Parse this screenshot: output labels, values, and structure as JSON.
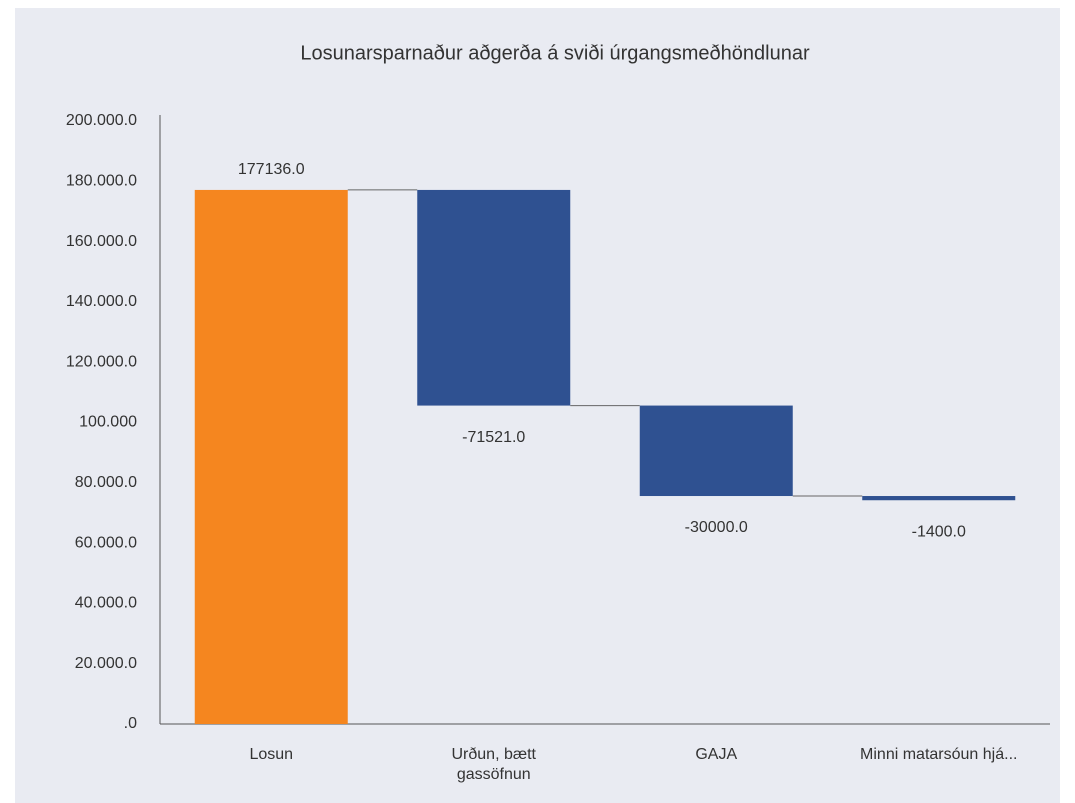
{
  "chart_data": {
    "type": "waterfall",
    "title": "Losunarsparnaður aðgerða á sviði úrgangsmeðhöndlunar",
    "categories": [
      "Losun",
      "Urðun, bætt gassöfnun",
      "GAJA",
      "Minni matarsóun hjá..."
    ],
    "values": [
      177136,
      -71521,
      -30000,
      -1400
    ],
    "value_labels": [
      "177136.0",
      "-71521.0",
      "-30000.0",
      "-1400.0"
    ],
    "colors": [
      "#f5861f",
      "#2f5191",
      "#2f5191",
      "#2f5191"
    ],
    "ylim": [
      0,
      200000
    ],
    "yticks": [
      {
        "value": 0,
        "label": ".0"
      },
      {
        "value": 20000,
        "label": "20.000.0"
      },
      {
        "value": 40000,
        "label": "40.000.0"
      },
      {
        "value": 60000,
        "label": "60.000.0"
      },
      {
        "value": 80000,
        "label": "80.000.0"
      },
      {
        "value": 100000,
        "label": "100.000"
      },
      {
        "value": 120000,
        "label": "120.000.0"
      },
      {
        "value": 140000,
        "label": "140.000.0"
      },
      {
        "value": 160000,
        "label": "160.000.0"
      },
      {
        "value": 180000,
        "label": "180.000.0"
      },
      {
        "value": 200000,
        "label": "200.000.0"
      }
    ],
    "grid": false
  }
}
